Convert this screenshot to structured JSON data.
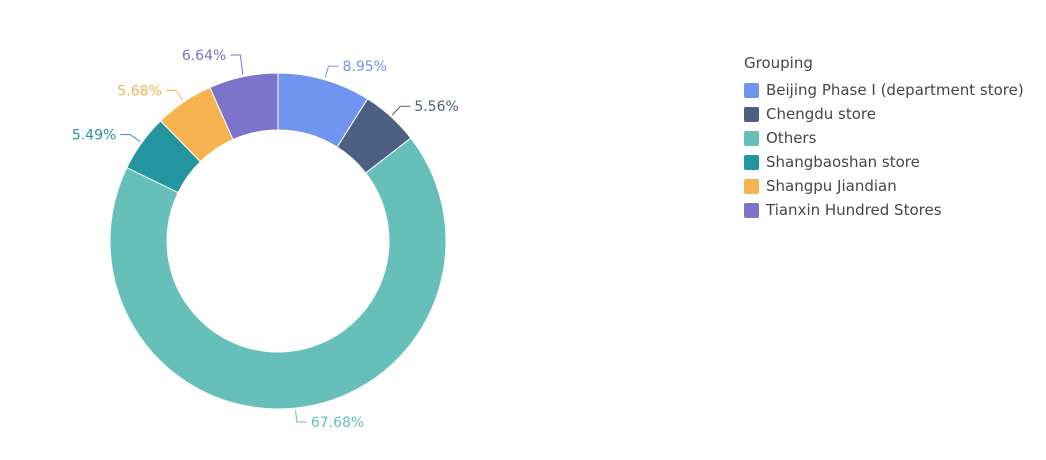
{
  "chart_data": {
    "type": "pie",
    "donut": true,
    "legend_title": "Grouping",
    "legend_position": "right",
    "slices": [
      {
        "name": "Beijing Phase I (department store)",
        "value": 8.95,
        "label": "8.95%",
        "color": "#6f95ee"
      },
      {
        "name": "Chengdu store",
        "value": 5.56,
        "label": "5.56%",
        "color": "#4d6083"
      },
      {
        "name": "Others",
        "value": 67.68,
        "label": "67.68%",
        "color": "#66c0b9"
      },
      {
        "name": "Shangbaoshan store",
        "value": 5.49,
        "label": "5.49%",
        "color": "#24949f"
      },
      {
        "name": "Shangpu Jiandian",
        "value": 5.68,
        "label": "5.68%",
        "color": "#f7b34f"
      },
      {
        "name": "Tianxin Hundred Stores",
        "value": 6.64,
        "label": "6.64%",
        "color": "#7c74ca"
      }
    ]
  }
}
